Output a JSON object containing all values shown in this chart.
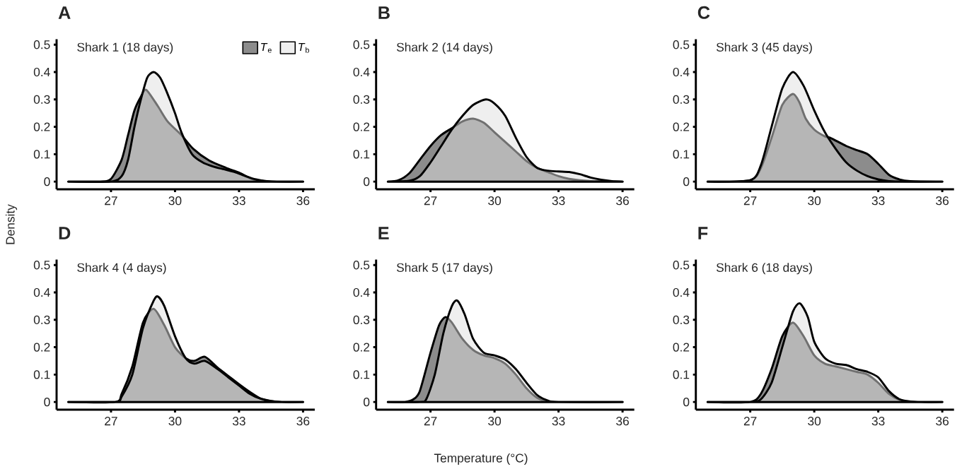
{
  "chart_data": [
    {
      "type": "area",
      "title": "A",
      "subtitle": "Shark 1 (18 days)",
      "ylabel": "Density",
      "legend": "top right",
      "xlim": [
        24.45,
        36.55
      ],
      "ylim": [
        -0.028,
        0.52
      ],
      "xticks": [
        27,
        30,
        33,
        36
      ],
      "yticks": [
        0,
        0.1,
        0.2,
        0.3,
        0.4,
        0.5
      ],
      "series": [
        {
          "name": "*T*$_{e}$",
          "color": "#8c8c8c",
          "x": [
            25.0,
            26.5,
            27.0,
            27.5,
            27.8,
            28.1,
            28.4,
            28.65,
            29.2,
            29.65,
            30.3,
            30.85,
            31.6,
            32.4,
            33.0,
            33.5,
            33.85,
            34.5,
            36.0
          ],
          "values": [
            0,
            0,
            0.01,
            0.08,
            0.17,
            0.26,
            0.31,
            0.335,
            0.275,
            0.22,
            0.17,
            0.12,
            0.077,
            0.05,
            0.033,
            0.013,
            0.005,
            0,
            0
          ]
        },
        {
          "name": "*T*$_{b}$",
          "color": "#e0e0e0",
          "x": [
            25.0,
            27.0,
            27.5,
            27.8,
            28.1,
            28.4,
            28.7,
            29.0,
            29.3,
            29.6,
            30.0,
            30.3,
            30.8,
            31.3,
            31.8,
            32.3,
            32.8,
            33.3,
            33.8,
            34.3,
            35.0,
            36.0
          ],
          "values": [
            0,
            0,
            0.02,
            0.08,
            0.2,
            0.3,
            0.38,
            0.4,
            0.38,
            0.33,
            0.25,
            0.18,
            0.1,
            0.07,
            0.055,
            0.045,
            0.035,
            0.02,
            0.008,
            0.002,
            0,
            0
          ]
        }
      ]
    },
    {
      "type": "area",
      "title": "B",
      "subtitle": "Shark 2 (14 days)",
      "xlim": [
        24.45,
        36.55
      ],
      "ylim": [
        -0.028,
        0.52
      ],
      "xticks": [
        27,
        30,
        33,
        36
      ],
      "yticks": [
        0,
        0.1,
        0.2,
        0.3,
        0.4,
        0.5
      ],
      "series": [
        {
          "color": "#8c8c8c",
          "x": [
            25.0,
            25.5,
            26.0,
            26.5,
            27.0,
            27.5,
            28.0,
            28.5,
            29.0,
            29.5,
            30.0,
            30.5,
            31.0,
            31.5,
            32.0,
            32.5,
            33.0,
            33.5,
            34.0,
            35.0,
            36.0
          ],
          "values": [
            0,
            0.005,
            0.03,
            0.08,
            0.13,
            0.17,
            0.195,
            0.22,
            0.23,
            0.215,
            0.18,
            0.145,
            0.11,
            0.075,
            0.05,
            0.035,
            0.02,
            0.01,
            0.005,
            0.001,
            0
          ]
        },
        {
          "color": "#e0e0e0",
          "x": [
            25.0,
            26.0,
            26.5,
            27.0,
            27.5,
            28.0,
            28.5,
            29.0,
            29.6,
            30.0,
            30.5,
            31.0,
            31.5,
            32.0,
            32.5,
            33.0,
            33.5,
            34.0,
            34.5,
            35.0,
            35.5,
            36.0
          ],
          "values": [
            0,
            0.003,
            0.02,
            0.07,
            0.13,
            0.19,
            0.24,
            0.28,
            0.3,
            0.285,
            0.24,
            0.16,
            0.09,
            0.05,
            0.04,
            0.037,
            0.035,
            0.027,
            0.015,
            0.007,
            0.002,
            0
          ]
        }
      ]
    },
    {
      "type": "area",
      "title": "C",
      "subtitle": "Shark 3 (45 days)",
      "xlim": [
        24.45,
        36.55
      ],
      "ylim": [
        -0.028,
        0.52
      ],
      "xticks": [
        27,
        30,
        33,
        36
      ],
      "yticks": [
        0,
        0.1,
        0.2,
        0.3,
        0.4,
        0.5
      ],
      "series": [
        {
          "color": "#8c8c8c",
          "x": [
            25.0,
            27.0,
            27.5,
            28.0,
            28.5,
            29.0,
            29.3,
            29.6,
            30.0,
            30.5,
            30.75,
            31.5,
            32.0,
            32.5,
            33.0,
            33.5,
            34.0,
            34.5,
            36.0
          ],
          "values": [
            0,
            0.005,
            0.05,
            0.16,
            0.28,
            0.32,
            0.29,
            0.23,
            0.19,
            0.165,
            0.16,
            0.13,
            0.115,
            0.1,
            0.065,
            0.025,
            0.008,
            0.002,
            0
          ]
        },
        {
          "color": "#e0e0e0",
          "x": [
            25.0,
            27.0,
            27.5,
            28.0,
            28.5,
            29.0,
            29.5,
            30.0,
            30.5,
            31.0,
            31.5,
            32.0,
            32.5,
            33.0,
            33.5,
            34.0,
            36.0
          ],
          "values": [
            0,
            0.005,
            0.06,
            0.2,
            0.34,
            0.4,
            0.35,
            0.26,
            0.18,
            0.12,
            0.07,
            0.04,
            0.02,
            0.008,
            0.002,
            0,
            0
          ]
        }
      ]
    },
    {
      "type": "area",
      "title": "D",
      "subtitle": "Shark 4 (4 days)",
      "xlim": [
        24.45,
        36.55
      ],
      "ylim": [
        -0.028,
        0.52
      ],
      "xticks": [
        27,
        30,
        33,
        36
      ],
      "yticks": [
        0,
        0.1,
        0.2,
        0.3,
        0.4,
        0.5
      ],
      "series": [
        {
          "color": "#8c8c8c",
          "x": [
            25.0,
            27.2,
            27.5,
            28.0,
            28.5,
            29.0,
            29.5,
            30.0,
            30.5,
            30.9,
            31.4,
            32.0,
            32.5,
            33.0,
            33.5,
            34.0,
            34.5,
            35.0,
            36.0
          ],
          "values": [
            0,
            0,
            0.03,
            0.13,
            0.29,
            0.34,
            0.28,
            0.2,
            0.16,
            0.15,
            0.165,
            0.125,
            0.095,
            0.065,
            0.037,
            0.013,
            0.004,
            0,
            0
          ]
        },
        {
          "color": "#e0e0e0",
          "x": [
            25.0,
            27.2,
            27.5,
            28.0,
            28.5,
            29.0,
            29.2,
            29.5,
            30.0,
            30.5,
            30.9,
            31.4,
            32.0,
            32.5,
            33.0,
            33.5,
            34.0,
            34.5,
            35.0,
            36.0
          ],
          "values": [
            0,
            0,
            0.02,
            0.1,
            0.27,
            0.37,
            0.385,
            0.35,
            0.24,
            0.16,
            0.14,
            0.15,
            0.12,
            0.09,
            0.06,
            0.03,
            0.012,
            0.003,
            0,
            0
          ]
        }
      ]
    },
    {
      "type": "area",
      "title": "E",
      "subtitle": "Shark 5 (17 days)",
      "xlabel": "Temperature (°C)",
      "xlim": [
        24.45,
        36.55
      ],
      "ylim": [
        -0.028,
        0.52
      ],
      "xticks": [
        27,
        30,
        33,
        36
      ],
      "yticks": [
        0,
        0.1,
        0.2,
        0.3,
        0.4,
        0.5
      ],
      "series": [
        {
          "color": "#8c8c8c",
          "x": [
            25.0,
            25.8,
            26.2,
            26.5,
            27.0,
            27.4,
            27.7,
            28.0,
            28.5,
            29.0,
            29.5,
            30.0,
            30.5,
            31.0,
            31.5,
            32.0,
            32.5,
            33.0,
            36.0
          ],
          "values": [
            0,
            0,
            0.01,
            0.04,
            0.18,
            0.28,
            0.31,
            0.29,
            0.23,
            0.19,
            0.17,
            0.16,
            0.14,
            0.1,
            0.05,
            0.015,
            0.002,
            0,
            0
          ]
        },
        {
          "color": "#e0e0e0",
          "x": [
            25.0,
            26.5,
            26.8,
            27.2,
            27.6,
            28.0,
            28.26,
            28.6,
            29.0,
            29.5,
            30.0,
            30.5,
            31.0,
            31.5,
            32.0,
            32.5,
            33.0,
            36.0
          ],
          "values": [
            0,
            0,
            0.01,
            0.1,
            0.25,
            0.35,
            0.37,
            0.32,
            0.23,
            0.18,
            0.17,
            0.155,
            0.12,
            0.07,
            0.025,
            0.005,
            0,
            0
          ]
        }
      ]
    },
    {
      "type": "area",
      "title": "F",
      "subtitle": "Shark 6 (18 days)",
      "xlim": [
        24.45,
        36.55
      ],
      "ylim": [
        -0.028,
        0.52
      ],
      "xticks": [
        27,
        30,
        33,
        36
      ],
      "yticks": [
        0,
        0.1,
        0.2,
        0.3,
        0.4,
        0.5
      ],
      "series": [
        {
          "color": "#8c8c8c",
          "x": [
            25.0,
            27.0,
            27.5,
            28.0,
            28.5,
            29.0,
            29.5,
            30.0,
            30.5,
            31.0,
            31.5,
            32.0,
            32.5,
            33.0,
            33.5,
            34.0,
            34.5,
            35.0,
            36.0
          ],
          "values": [
            0,
            0,
            0.03,
            0.12,
            0.24,
            0.29,
            0.24,
            0.17,
            0.14,
            0.13,
            0.12,
            0.11,
            0.1,
            0.07,
            0.03,
            0.008,
            0.001,
            0,
            0
          ]
        },
        {
          "color": "#e0e0e0",
          "x": [
            25.0,
            27.0,
            27.5,
            28.0,
            28.5,
            29.0,
            29.33,
            29.7,
            30.0,
            30.5,
            31.0,
            31.5,
            32.0,
            32.5,
            33.0,
            33.5,
            34.0,
            34.5,
            35.0,
            36.0
          ],
          "values": [
            0,
            0,
            0.01,
            0.07,
            0.2,
            0.33,
            0.36,
            0.31,
            0.22,
            0.16,
            0.14,
            0.135,
            0.12,
            0.11,
            0.09,
            0.04,
            0.01,
            0.002,
            0,
            0
          ]
        }
      ]
    }
  ]
}
